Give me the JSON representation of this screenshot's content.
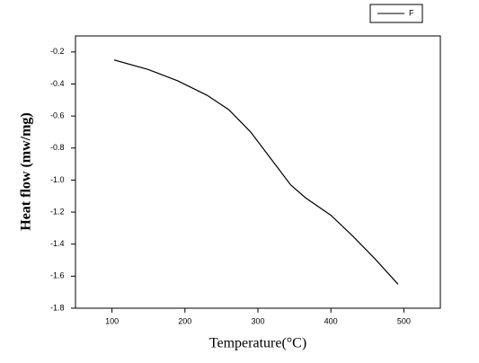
{
  "chart_data": {
    "type": "line",
    "x_label": "Temperature(°C)",
    "y_label": "Heat flow (mw/mg)",
    "xlim": [
      50,
      550
    ],
    "ylim": [
      -1.8,
      -0.1
    ],
    "xticks": [
      100,
      200,
      300,
      400,
      500
    ],
    "yticks": [
      -0.2,
      -0.4,
      -0.6,
      -0.8,
      {
        "value": -1,
        "label": "-1.0"
      },
      -1.2,
      -1.4,
      -1.6,
      -1.8
    ],
    "legend": "upper right",
    "series": [
      {
        "name": "F",
        "color": "#000000",
        "x": [
          103,
          150,
          190,
          230,
          260,
          290,
          320,
          345,
          365,
          400,
          430,
          460,
          492
        ],
        "values": [
          -0.25,
          -0.31,
          -0.38,
          -0.47,
          -0.56,
          -0.7,
          -0.88,
          -1.03,
          -1.11,
          -1.22,
          -1.35,
          -1.49,
          -1.65
        ]
      }
    ]
  }
}
